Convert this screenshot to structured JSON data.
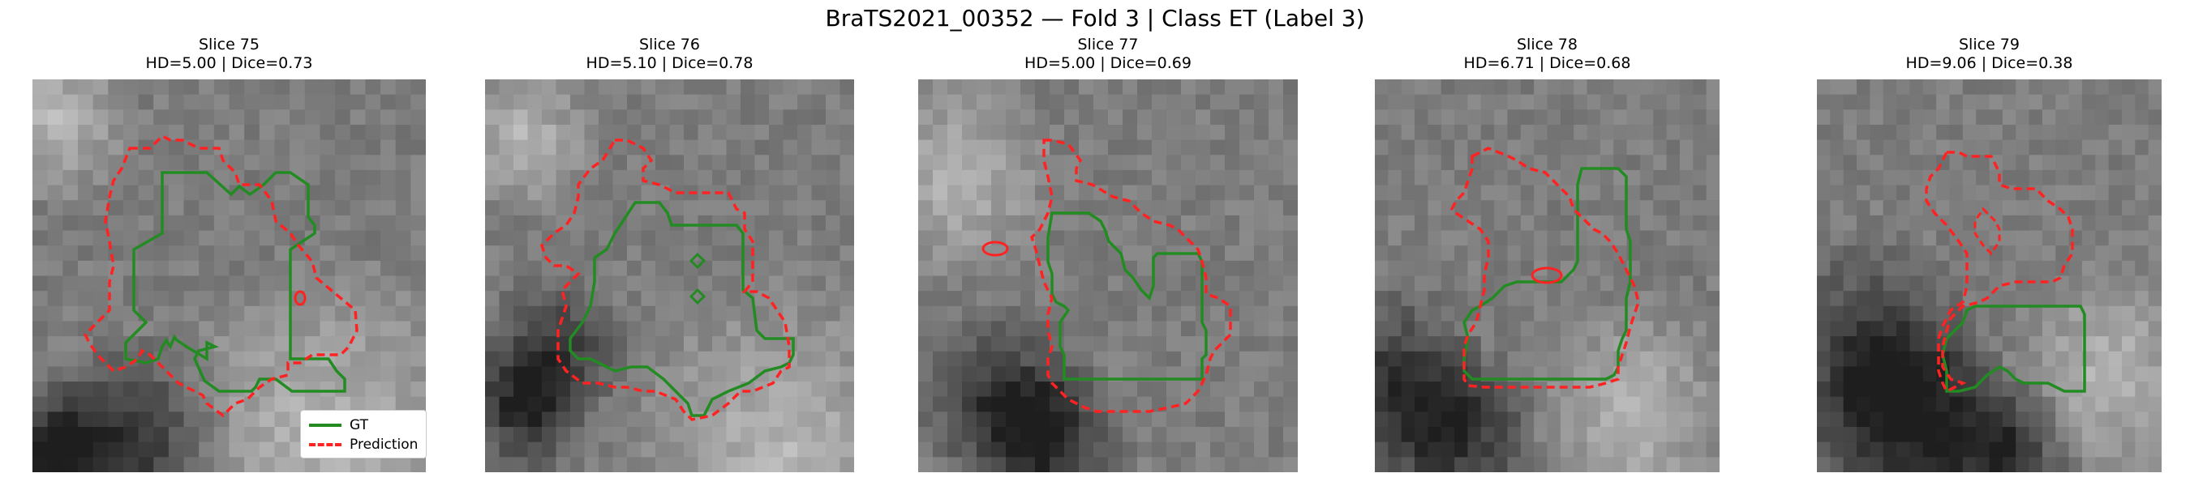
{
  "figure_title": "BraTS2021_00352 — Fold 3 | Class ET (Label 3)",
  "colors": {
    "gt": "#228b22",
    "prediction": "#ff2222"
  },
  "legend": {
    "gt_label": "GT",
    "prediction_label": "Prediction"
  },
  "panels": [
    {
      "slice": "Slice 75",
      "metrics": "HD=5.00 | Dice=0.73"
    },
    {
      "slice": "Slice 76",
      "metrics": "HD=5.10 | Dice=0.78"
    },
    {
      "slice": "Slice 77",
      "metrics": "HD=5.00 | Dice=0.69"
    },
    {
      "slice": "Slice 78",
      "metrics": "HD=6.71 | Dice=0.68"
    },
    {
      "slice": "Slice 79",
      "metrics": "HD=9.06 | Dice=0.38"
    }
  ]
}
